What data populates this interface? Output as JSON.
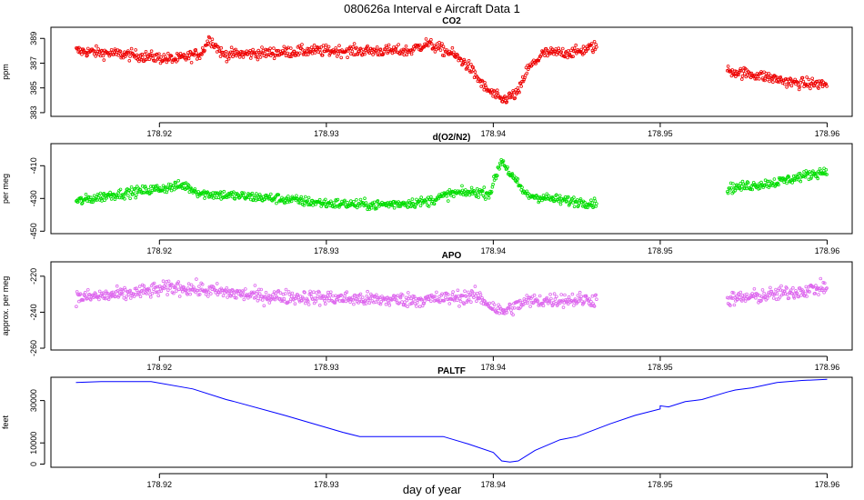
{
  "title": "080626a   Interval e Aircraft Data 1",
  "chart_data": {
    "type": "scatter",
    "xlabel": "day of year",
    "xlim": [
      178.9135,
      178.9615
    ],
    "xticks": [
      178.92,
      178.93,
      178.94,
      178.95,
      178.96
    ],
    "xtick_labels": [
      "178.92",
      "178.93",
      "178.94",
      "178.95",
      "178.96"
    ],
    "gap": [
      178.9462,
      178.954
    ],
    "panels": [
      {
        "title": "CO2",
        "ylabel": "ppm",
        "ylim": [
          382.7,
          389.9
        ],
        "yticks": [
          383,
          385,
          387,
          389
        ],
        "ytick_labels": [
          "383",
          "385",
          "387",
          "389"
        ],
        "type": "scatter",
        "color": "#ee0000",
        "point_count": 900,
        "noise": 0.45,
        "trend": [
          [
            178.915,
            388.0
          ],
          [
            178.918,
            387.7
          ],
          [
            178.921,
            387.3
          ],
          [
            178.9225,
            387.8
          ],
          [
            178.923,
            389.0
          ],
          [
            178.9238,
            387.7
          ],
          [
            178.926,
            387.8
          ],
          [
            178.929,
            388.0
          ],
          [
            178.932,
            388.0
          ],
          [
            178.935,
            388.0
          ],
          [
            178.936,
            388.6
          ],
          [
            178.9375,
            387.8
          ],
          [
            178.9385,
            386.8
          ],
          [
            178.9395,
            385.0
          ],
          [
            178.9405,
            384.0
          ],
          [
            178.9415,
            384.6
          ],
          [
            178.942,
            386.4
          ],
          [
            178.943,
            387.8
          ],
          [
            178.945,
            387.9
          ],
          [
            178.9462,
            388.4
          ],
          [
            178.954,
            386.4
          ],
          [
            178.956,
            386.0
          ],
          [
            178.958,
            385.4
          ],
          [
            178.96,
            385.3
          ]
        ]
      },
      {
        "title": "d(O2/N2)",
        "ylabel": "per meg",
        "ylim": [
          -451.5,
          -396.5
        ],
        "yticks": [
          -450,
          -430,
          -410
        ],
        "ytick_labels": [
          "-450",
          "-430",
          "-410"
        ],
        "type": "scatter",
        "color": "#00dd00",
        "point_count": 900,
        "noise": 3.0,
        "trend": [
          [
            178.915,
            -432.0
          ],
          [
            178.917,
            -428.0
          ],
          [
            178.92,
            -424.0
          ],
          [
            178.9215,
            -422.0
          ],
          [
            178.9225,
            -427.0
          ],
          [
            178.924,
            -428.0
          ],
          [
            178.927,
            -430.0
          ],
          [
            178.93,
            -433.0
          ],
          [
            178.933,
            -434.0
          ],
          [
            178.936,
            -432.0
          ],
          [
            178.9375,
            -427.0
          ],
          [
            178.939,
            -426.0
          ],
          [
            178.9398,
            -427.0
          ],
          [
            178.9405,
            -406.0
          ],
          [
            178.941,
            -415.0
          ],
          [
            178.942,
            -428.0
          ],
          [
            178.944,
            -431.0
          ],
          [
            178.9462,
            -433.0
          ],
          [
            178.954,
            -424.0
          ],
          [
            178.957,
            -420.0
          ],
          [
            178.96,
            -413.0
          ]
        ]
      },
      {
        "title": "APO",
        "ylabel": "approx. per meg",
        "ylim": [
          -261,
          -212
        ],
        "yticks": [
          -260,
          -240,
          -220
        ],
        "ytick_labels": [
          "-260",
          "-240",
          "-220"
        ],
        "type": "scatter",
        "color": "#dd66ee",
        "point_count": 900,
        "noise": 4.0,
        "trend": [
          [
            178.915,
            -232.0
          ],
          [
            178.918,
            -230.0
          ],
          [
            178.921,
            -226.0
          ],
          [
            178.923,
            -228.0
          ],
          [
            178.926,
            -231.0
          ],
          [
            178.93,
            -232.0
          ],
          [
            178.933,
            -233.0
          ],
          [
            178.936,
            -233.0
          ],
          [
            178.939,
            -231.0
          ],
          [
            178.9405,
            -240.0
          ],
          [
            178.942,
            -234.0
          ],
          [
            178.944,
            -233.0
          ],
          [
            178.9462,
            -233.0
          ],
          [
            178.954,
            -233.0
          ],
          [
            178.957,
            -230.0
          ],
          [
            178.96,
            -226.0
          ]
        ]
      },
      {
        "title": "PALTF",
        "ylabel": "feet",
        "ylim": [
          -1500,
          41000
        ],
        "yticks": [
          0,
          10000,
          30000
        ],
        "ytick_labels": [
          "0",
          "10000",
          "30000"
        ],
        "type": "line",
        "color": "#0000ff",
        "points": [
          [
            178.915,
            38500
          ],
          [
            178.9165,
            39000
          ],
          [
            178.9195,
            39000
          ],
          [
            178.922,
            35500
          ],
          [
            178.924,
            30500
          ],
          [
            178.9245,
            29500
          ],
          [
            178.9275,
            23000
          ],
          [
            178.931,
            15000
          ],
          [
            178.932,
            13000
          ],
          [
            178.937,
            13000
          ],
          [
            178.9385,
            9500
          ],
          [
            178.94,
            5500
          ],
          [
            178.9405,
            1500
          ],
          [
            178.941,
            1000
          ],
          [
            178.9415,
            1500
          ],
          [
            178.9425,
            6500
          ],
          [
            178.944,
            11500
          ],
          [
            178.945,
            13000
          ],
          [
            178.947,
            19000
          ],
          [
            178.9485,
            23000
          ],
          [
            178.95,
            26000
          ],
          [
            178.95,
            27500
          ],
          [
            178.9505,
            27000
          ],
          [
            178.9515,
            29500
          ],
          [
            178.9525,
            30500
          ],
          [
            178.954,
            34000
          ],
          [
            178.9545,
            35000
          ],
          [
            178.9555,
            36000
          ],
          [
            178.957,
            38500
          ],
          [
            178.9585,
            39500
          ],
          [
            178.96,
            40000
          ]
        ]
      }
    ]
  }
}
